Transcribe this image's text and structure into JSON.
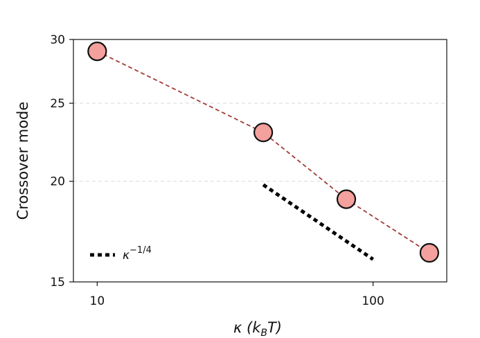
{
  "chart_data": {
    "type": "scatter",
    "title": "",
    "xlabel": "κ (k",
    "xlabel_sub": "B",
    "xlabel_tail": "T)",
    "ylabel": "Crossover mode",
    "xscale": "log",
    "yscale": "log",
    "xlim": [
      8.2,
      185
    ],
    "ylim": [
      15,
      30
    ],
    "xticks": [
      {
        "value": 10,
        "label": "10"
      },
      {
        "value": 100,
        "label": "100"
      }
    ],
    "yticks": [
      {
        "value": 15,
        "label": "15"
      },
      {
        "value": 20,
        "label": "20"
      },
      {
        "value": 25,
        "label": "25"
      },
      {
        "value": 30,
        "label": "30"
      }
    ],
    "grid": "horizontal-dashed",
    "series": [
      {
        "x": [
          10,
          40,
          80,
          160
        ],
        "y": [
          29,
          23,
          19,
          16.3
        ],
        "marker_color": "#f4a09c",
        "marker_edge": "#111111",
        "line_color": "#a23b36",
        "line_style": "dashed"
      }
    ],
    "reference_line": {
      "x": [
        40,
        100
      ],
      "y": [
        19.8,
        16
      ],
      "color": "#000000",
      "style": "dotted"
    },
    "legend": {
      "placement": "bottom-left",
      "entries": [
        {
          "label": "κ",
          "superscript": "−1/4"
        }
      ]
    }
  }
}
